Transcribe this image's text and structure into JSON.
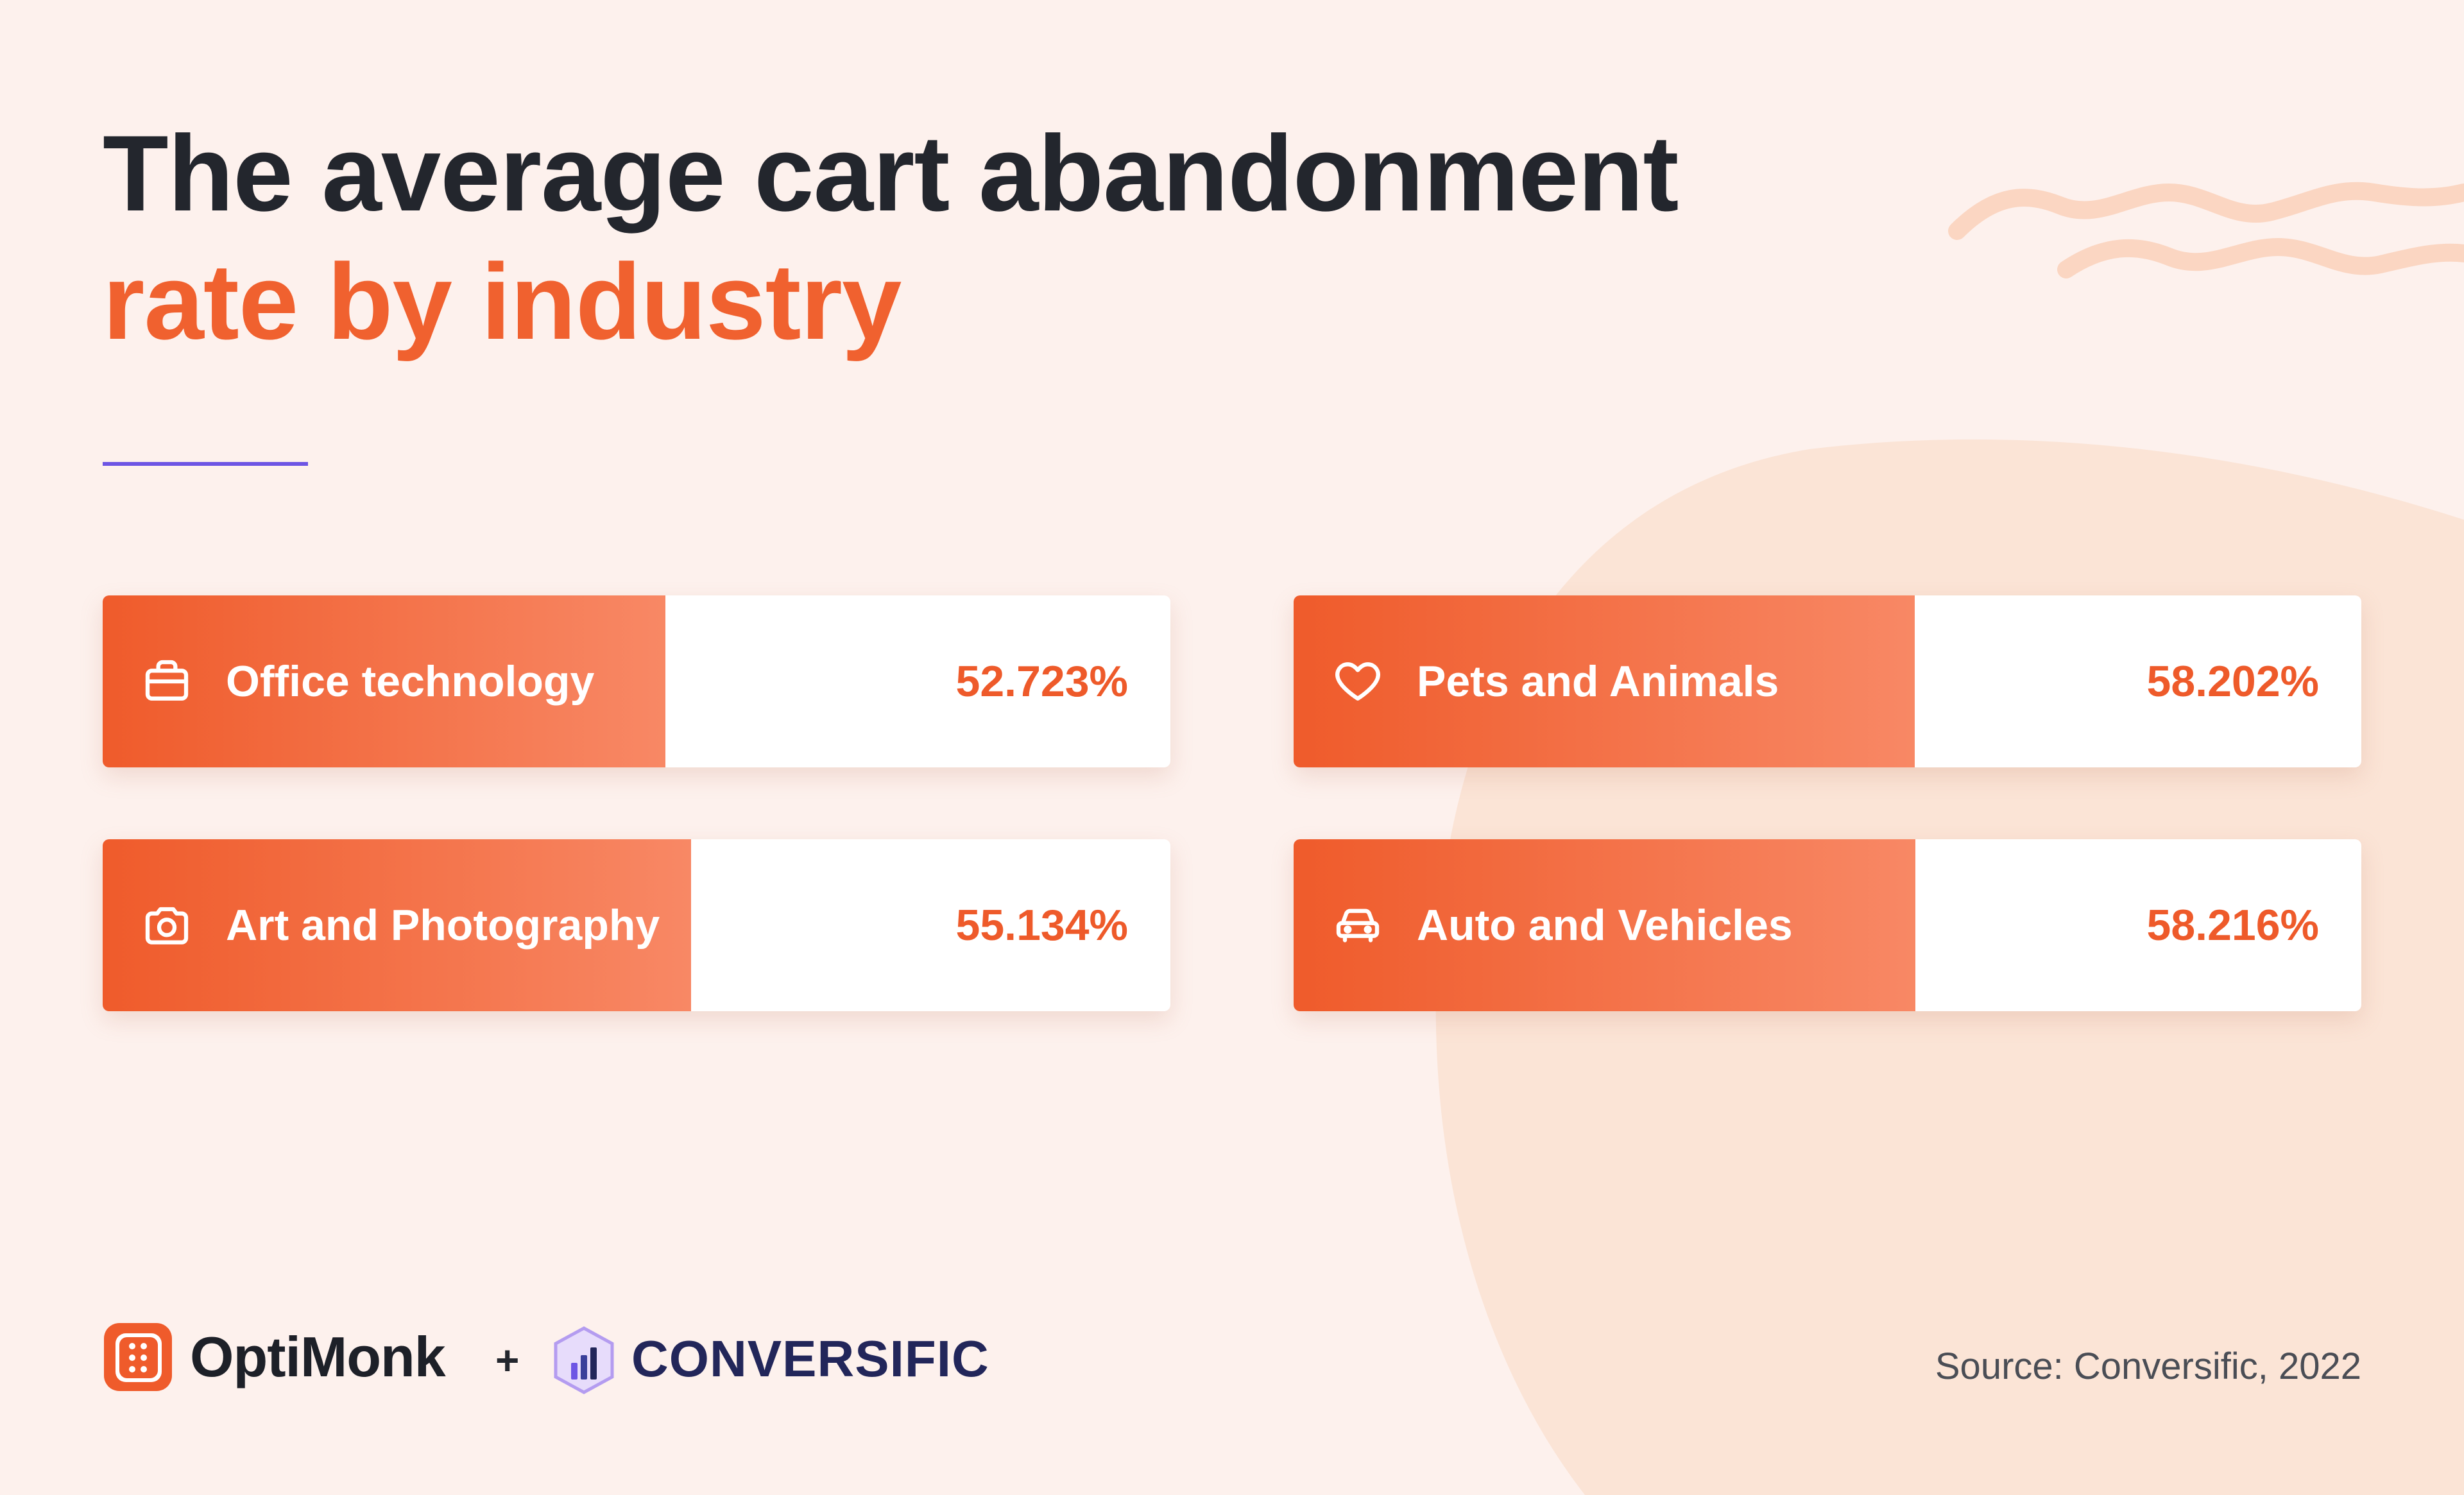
{
  "title": {
    "line1": "The average cart abandonment",
    "line2": "rate by industry"
  },
  "colors": {
    "background": "#fdf1ed",
    "accent": "#f0612f",
    "title_dark": "#23262d",
    "rule": "#6d55e4",
    "blob": "#fbe4d6"
  },
  "chart_data": {
    "type": "bar",
    "ylim": [
      0,
      100
    ],
    "unit": "%",
    "items": [
      {
        "category": "Office technology",
        "value": 52.723,
        "label": "52.723%",
        "icon": "briefcase-icon"
      },
      {
        "category": "Pets and Animals",
        "value": 58.202,
        "label": "58.202%",
        "icon": "heart-icon"
      },
      {
        "category": "Art and Photography",
        "value": 55.134,
        "label": "55.134%",
        "icon": "camera-icon"
      },
      {
        "category": "Auto and Vehicles",
        "value": 58.216,
        "label": "58.216%",
        "icon": "car-icon"
      }
    ]
  },
  "footer": {
    "brand1": "OptiMonk",
    "plus": "+",
    "brand2": "CONVERSIFIC",
    "source": "Source: Conversific, 2022"
  }
}
